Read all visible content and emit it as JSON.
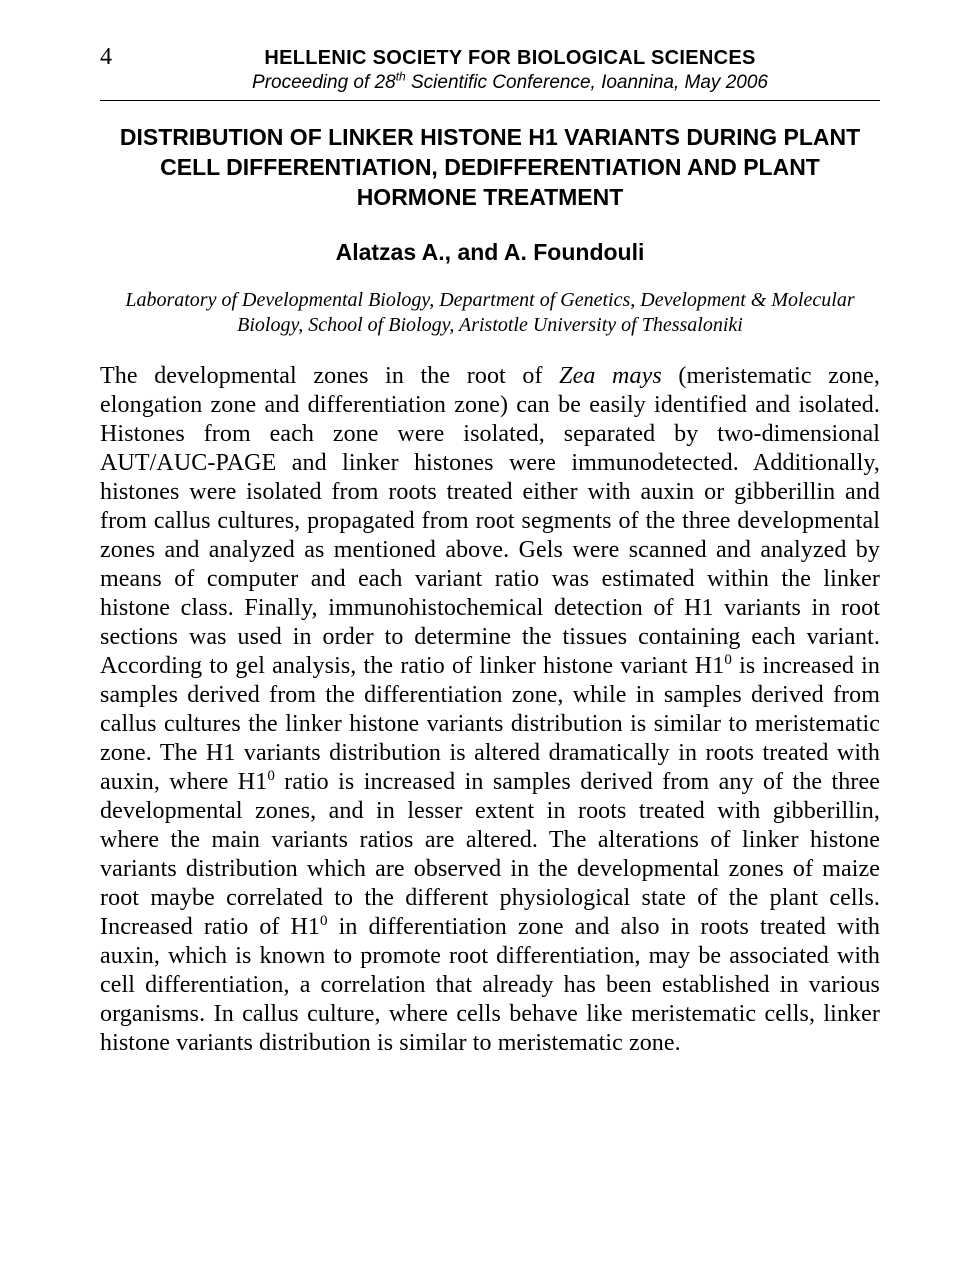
{
  "page_number": "4",
  "header": {
    "society": "HELLENIC SOCIETY FOR BIOLOGICAL SCIENCES",
    "proceeding_prefix": "Proceeding of 28",
    "proceeding_ord": "th",
    "proceeding_suffix": " Scientific Conference, Ioannina, May 2006"
  },
  "title": "DISTRIBUTION OF LINKER HISTONE H1 VARIANTS DURING PLANT CELL DIFFERENTIATION, DEDIFFERENTIATION AND PLANT HORMONE TREATMENT",
  "authors": "Alatzas A., and A. Foundouli",
  "affiliation": "Laboratory of Developmental Biology, Department of Genetics, Development & Molecular Biology, School of Biology, Aristotle University of Thessaloniki",
  "body": {
    "p1a": "The developmental zones in the root of ",
    "p1_ital": "Zea mays",
    "p1b": " (meristematic zone, elongation zone and differentiation zone) can be easily identified and isolated. Histones from each zone were isolated, separated by two-dimensional AUT/AUC-PAGE and linker histones were immunodetected. Additionally, histones were isolated from roots treated either with auxin or gibberillin and from callus cultures, propagated from root segments of the three developmental zones and analyzed as mentioned above. Gels were scanned and analyzed by means of computer and each variant ratio was estimated within the linker histone class. Finally, immunohistochemical detection of H1 variants in root sections was used in order to determine the tissues containing each variant. According to gel analysis, the ratio of linker histone variant H1",
    "sup0a": "0",
    "p1c": " is increased in samples derived from the differentiation zone, while in samples derived from callus cultures the linker histone variants distribution is similar to meristematic zone. The H1 variants distribution is altered dramatically in roots treated with auxin, where H1",
    "sup0b": "0",
    "p1d": " ratio is increased in samples derived from any of the three developmental zones, and in lesser extent in roots treated with gibberillin, where the main variants ratios are altered. The alterations of linker histone variants distribution which are observed in the developmental zones of maize root maybe correlated to the different physiological state of the plant cells. Increased ratio of H1",
    "sup0c": "0",
    "p1e": " in differentiation zone and also in roots treated with auxin, which is known to promote root differentiation, may be associated with cell differentiation, a correlation that already has been established in various organisms. In callus culture, where cells behave like meristematic cells, linker histone variants distribution is similar to meristematic zone."
  },
  "colors": {
    "text": "#000000",
    "background": "#ffffff",
    "rule": "#000000"
  },
  "fonts": {
    "header_family": "Arial",
    "body_family": "Times New Roman",
    "title_size_pt": 17,
    "body_size_pt": 18,
    "affiliation_size_pt": 15
  }
}
